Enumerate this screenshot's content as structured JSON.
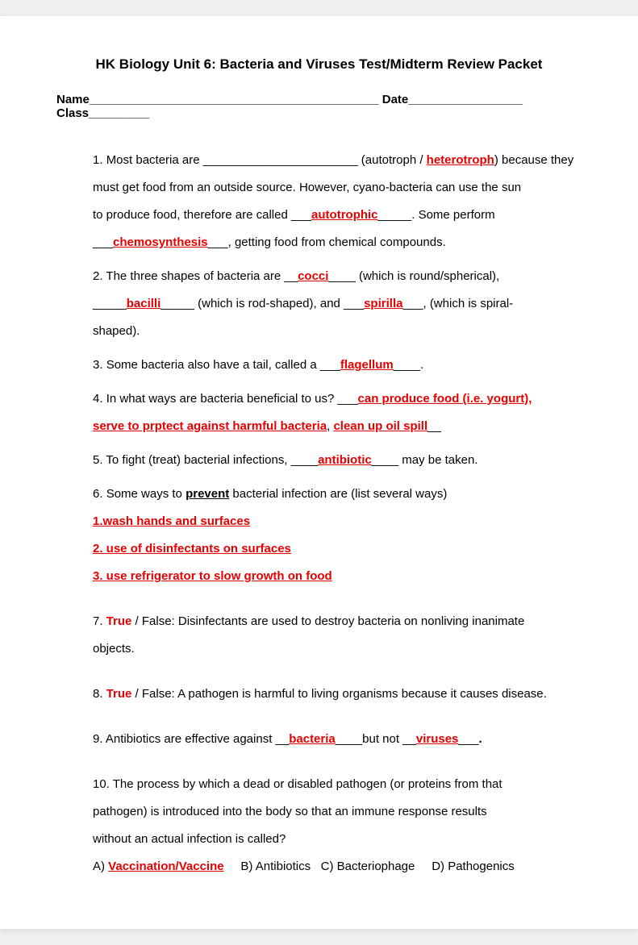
{
  "title": "HK Biology Unit 6: Bacteria and Viruses Test/Midterm Review Packet",
  "header": {
    "name_label": "Name",
    "name_blank": "___________________________________________",
    "date_label": "Date",
    "date_blank": "_________________",
    "class_label": "Class",
    "class_blank": "_________"
  },
  "q1": {
    "num": "1.",
    "t1": "Most bacteria are _______________________ (autotroph / ",
    "a1": "heterotroph",
    "t2": ") because they",
    "t3": "must get food from an outside source. However, cyano-bacteria can use the sun",
    "t4": "to produce food, therefore are called ___",
    "a2": "autotrophic",
    "t5": "_____. Some perform",
    "t6": "___",
    "a3": "chemosynthesis",
    "t7": "___, getting food from chemical compounds."
  },
  "q2": {
    "num": "2.",
    "t1": "The three shapes of bacteria are __",
    "a1": "cocci",
    "t2": "____ (which is round/spherical),",
    "t3": "_____",
    "a2": "bacilli",
    "t4": "_____ (which is rod-shaped), and ___",
    "a3": "spirilla",
    "t5": "___, (which is spiral-",
    "t6": "shaped)."
  },
  "q3": {
    "num": "3.",
    "t1": "Some bacteria also have a tail, called a ___",
    "a1": "flagellum",
    "t2": "____."
  },
  "q4": {
    "num": "4.",
    "t1": "In what ways are bacteria beneficial to us? ___",
    "a1": "can produce food (i.e. yogurt),",
    "a2": "serve to prptect against harmful bacteria",
    "comma": ", ",
    "a3": "clean up oil spill",
    "t2": "__"
  },
  "q5": {
    "num": "5.",
    "t1": "To fight (treat) bacterial infections, ____",
    "a1": "antibiotic",
    "t2": "____ may be taken."
  },
  "q6": {
    "num": "6.",
    "t1": "Some ways to ",
    "bold1": "prevent",
    "t2": " bacterial infection are (list several ways)",
    "p1": "1.wash hands and surfaces",
    "p2": "2. use of disinfectants on surfaces",
    "p3": "3. use refrigerator to slow growth on food"
  },
  "q7": {
    "num": "7.",
    "a1": "True",
    "t1": " / False: Disinfectants are used to destroy bacteria on nonliving inanimate",
    "t2": "objects."
  },
  "q8": {
    "num": "8.",
    "a1": "True",
    "t1": " / False: A pathogen is harmful to living organisms because it causes disease."
  },
  "q9": {
    "num": "9.",
    "t1": "Antibiotics are effective against __",
    "a1": "bacteria",
    "t2": "____but not __",
    "a2": "viruses",
    "t3": "___",
    "period": "."
  },
  "q10": {
    "num": "10.",
    "t1": "The process by which a dead or disabled pathogen (or proteins from that",
    "t2": "pathogen) is introduced into the body so that an immune response results",
    "t3": "without an actual infection is called?",
    "optA": "A) ",
    "a1": "Vaccination/Vaccine",
    "optB": "     B) Antibiotics   C) Bacteriophage     D) Pathogenics"
  },
  "colors": {
    "answer": "#e60000",
    "text": "#000000",
    "background": "#ffffff"
  }
}
